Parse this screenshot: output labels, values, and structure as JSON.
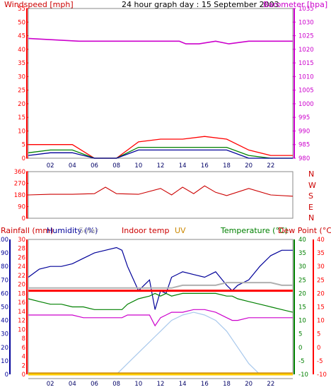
{
  "header": {
    "left_title": "Windspeed [mph]",
    "center_title": "24 hour graph day : 15 September 2003",
    "right_title": "Barometer [hpa]"
  },
  "legend_row": {
    "rainfall": "Rainfall (mm)",
    "humidity": "Humidity (%)",
    "solar": "Solar",
    "indoor": "Indoor temp",
    "uv": "UV",
    "temperature": "Temperature (°C)",
    "dewpoint": "Dew Point (°C)"
  },
  "colors": {
    "red": "#ff0000",
    "dark_red": "#cc0000",
    "magenta": "#cc00cc",
    "green": "#008000",
    "blue": "#000099",
    "gray": "#b0b0b0",
    "orange": "#cc8800",
    "light_blue": "#a8c8ec",
    "yellow": "#ffcc00"
  },
  "time_ticks": [
    "02",
    "04",
    "06",
    "08",
    "10",
    "12",
    "14",
    "16",
    "18",
    "20",
    "22"
  ],
  "direction_labels": [
    "N",
    "W",
    "S",
    "E",
    "N"
  ],
  "chart_data": [
    {
      "id": "wind",
      "type": "line",
      "x": [
        0,
        2,
        4,
        6,
        8,
        10,
        12,
        14,
        16,
        18,
        20,
        22,
        24
      ],
      "series": [
        {
          "color": "red",
          "values": [
            5,
            5,
            5,
            0,
            0,
            6,
            7,
            7,
            8,
            7,
            3,
            1,
            1
          ]
        },
        {
          "color": "green",
          "values": [
            2,
            3,
            3,
            0,
            0,
            4,
            4,
            4,
            4,
            4,
            1,
            0,
            0
          ]
        },
        {
          "color": "blue",
          "values": [
            1,
            2,
            2,
            0,
            0,
            3,
            3,
            3,
            3,
            3,
            0,
            0,
            0
          ]
        }
      ],
      "ylim": [
        0,
        55
      ],
      "y_ticks": [
        0,
        5,
        10,
        15,
        20,
        25,
        30,
        35,
        40,
        45,
        50,
        55
      ]
    },
    {
      "id": "barometer",
      "type": "line",
      "x": [
        0,
        4.6,
        13.7,
        14.3,
        15.5,
        17,
        18.2,
        20,
        24
      ],
      "series": [
        {
          "color": "magenta",
          "values": [
            1024,
            1023,
            1023,
            1022,
            1022,
            1023,
            1022,
            1023,
            1023
          ]
        }
      ],
      "ylim": [
        980,
        1035
      ],
      "y_ticks": [
        980,
        985,
        990,
        995,
        1000,
        1005,
        1010,
        1015,
        1020,
        1025,
        1030,
        1035
      ]
    },
    {
      "id": "direction",
      "type": "line",
      "x": [
        0,
        2,
        4,
        6,
        7,
        8,
        10,
        12,
        13,
        14,
        15,
        16,
        17,
        18,
        20,
        22,
        24
      ],
      "series": [
        {
          "color": "dark_red",
          "values": [
            180,
            185,
            185,
            190,
            240,
            190,
            185,
            230,
            180,
            240,
            190,
            250,
            200,
            175,
            230,
            180,
            170
          ]
        }
      ],
      "ylim": [
        0,
        360
      ],
      "y_ticks": [
        0,
        90,
        180,
        270,
        360
      ]
    },
    {
      "id": "climate",
      "type": "line",
      "x": [
        0,
        1,
        2,
        3,
        4,
        5,
        6,
        7,
        8,
        8.5,
        9,
        10,
        11,
        11.5,
        12,
        12.5,
        13,
        14,
        15,
        16,
        17,
        18,
        18.5,
        19,
        20,
        21,
        22,
        23,
        24
      ],
      "temp_scale": [
        -10,
        40
      ],
      "temp_ticks": [
        -10,
        -5,
        0,
        5,
        10,
        15,
        20,
        25,
        30,
        35,
        40
      ],
      "rain_ticks": [
        0,
        2,
        4,
        6,
        8,
        10,
        12,
        14,
        16,
        18,
        20,
        22,
        24,
        26,
        28,
        30
      ],
      "humidity_ticks": [
        0,
        10,
        20,
        30,
        40,
        50,
        60,
        70,
        80,
        90,
        100
      ],
      "series": [
        {
          "color": "blue",
          "values": [
            26,
            29,
            30,
            30,
            31,
            33,
            35,
            36,
            37,
            36,
            30,
            21,
            25,
            14,
            21,
            20,
            26,
            28,
            27,
            26,
            28,
            23,
            21,
            23,
            25,
            30,
            34,
            36,
            36
          ]
        },
        {
          "color": "gray",
          "values": [
            22,
            22,
            22,
            22,
            22,
            22,
            22,
            22,
            22,
            22,
            22,
            22,
            22,
            22,
            22,
            22,
            22,
            23,
            23,
            23,
            23,
            24,
            24,
            24,
            24,
            24,
            24,
            23,
            23
          ]
        },
        {
          "color": "red",
          "values": [
            21,
            21,
            21,
            21,
            21,
            21,
            21,
            21,
            21,
            21,
            21,
            21,
            21,
            21,
            21,
            21,
            21,
            21,
            21,
            21,
            21,
            21,
            21,
            21,
            21,
            21,
            21,
            21,
            21
          ]
        },
        {
          "color": "green",
          "values": [
            18,
            17,
            16,
            16,
            15,
            15,
            14,
            14,
            14,
            14,
            16,
            18,
            19,
            20,
            19,
            20,
            19,
            20,
            20,
            20,
            20,
            19,
            19,
            18,
            17,
            16,
            15,
            14,
            13
          ]
        },
        {
          "color": "magenta",
          "values": [
            12,
            12,
            12,
            12,
            12,
            11,
            11,
            11,
            11,
            11,
            12,
            12,
            12,
            8,
            11,
            12,
            13,
            13,
            14,
            14,
            13,
            11,
            10,
            10,
            11,
            11,
            11,
            11,
            11
          ]
        },
        {
          "color": "light_blue",
          "values": [
            -10,
            -10,
            -10,
            -10,
            -10,
            -10,
            -10,
            -10,
            -10,
            -8,
            -6,
            -2,
            2,
            4,
            6,
            8,
            10,
            12,
            13,
            12,
            10,
            6,
            3,
            0,
            -6,
            -10,
            -10,
            -10,
            -10
          ]
        },
        {
          "color": "yellow",
          "values": [
            -10,
            -10,
            -10,
            -10,
            -10,
            -10,
            -10,
            -10,
            -10,
            -10,
            -10,
            -10,
            -10,
            -10,
            -10,
            -10,
            -10,
            -10,
            -10,
            -10,
            -10,
            -10,
            -10,
            -10,
            -10,
            -10,
            -10,
            -10,
            -10
          ]
        },
        {
          "color": "orange",
          "values": [
            -9.5,
            -9.5,
            -9.5,
            -9.5,
            -9.5,
            -9.5,
            -9.5,
            -9.5,
            -9.5,
            -9.5,
            -9.5,
            -9.5,
            -9.5,
            -9.5,
            -9.5,
            -9.5,
            -9.5,
            -9.5,
            -9.5,
            -9.5,
            -9.5,
            -9.5,
            -9.5,
            -9.5,
            -9.5,
            -9.5,
            -9.5,
            -9.5,
            -9.5
          ]
        }
      ]
    }
  ]
}
